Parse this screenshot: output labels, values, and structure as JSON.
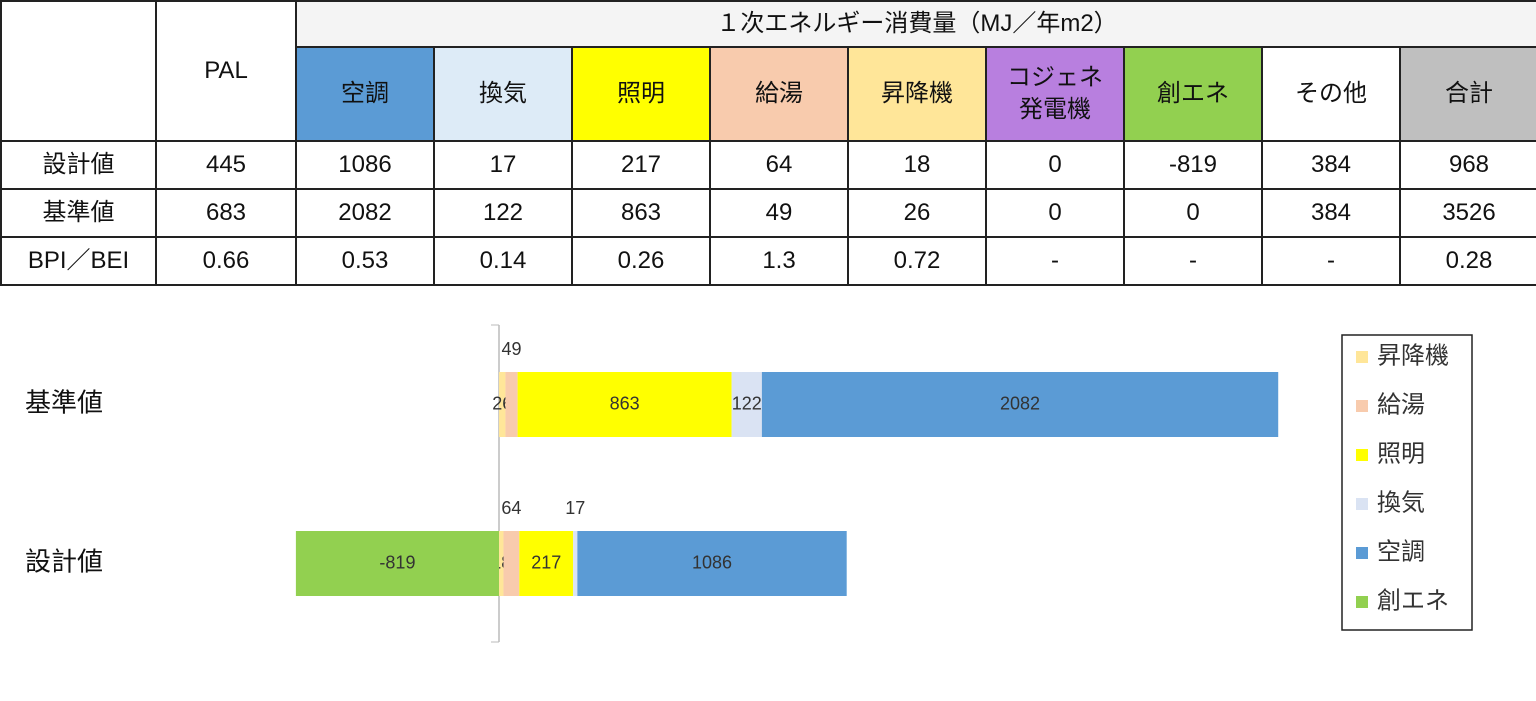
{
  "table": {
    "group_header": "１次エネルギー消費量（MJ／年m2）",
    "pal_header": "PAL",
    "columns": [
      {
        "label": "空調",
        "color": "#5b9bd5"
      },
      {
        "label": "換気",
        "color": "#ddebf7"
      },
      {
        "label": "照明",
        "color": "#ffff00"
      },
      {
        "label": "給湯",
        "color": "#f8cbad"
      },
      {
        "label": "昇降機",
        "color": "#ffe699"
      },
      {
        "label": "コジェネ\n発電機",
        "color": "#b87fdf"
      },
      {
        "label": "創エネ",
        "color": "#92d050"
      },
      {
        "label": "その他",
        "color": "#ffffff"
      },
      {
        "label": "合計",
        "color": "#bfbfbf"
      }
    ],
    "rows": [
      [
        "設計値",
        445,
        1086,
        17,
        217,
        64,
        18,
        0,
        -819,
        384,
        968
      ],
      [
        "基準値",
        683,
        2082,
        122,
        863,
        49,
        26,
        0,
        0,
        384,
        3526
      ],
      [
        "BPI／BEI",
        0.66,
        0.53,
        0.14,
        0.26,
        1.3,
        0.72,
        "-",
        "-",
        "-",
        0.28
      ]
    ]
  },
  "chart_data": {
    "type": "bar",
    "orientation": "horizontal",
    "stacked": true,
    "categories": [
      "基準値",
      "設計値"
    ],
    "series": [
      {
        "name": "昇降機",
        "color": "#ffe699",
        "values": [
          26,
          18
        ]
      },
      {
        "name": "給湯",
        "color": "#f8cbad",
        "values": [
          49,
          64
        ]
      },
      {
        "name": "照明",
        "color": "#ffff00",
        "values": [
          863,
          217
        ]
      },
      {
        "name": "換気",
        "color": "#dae3f3",
        "values": [
          122,
          17
        ]
      },
      {
        "name": "空調",
        "color": "#5b9bd5",
        "values": [
          2082,
          1086
        ]
      },
      {
        "name": "創エネ",
        "color": "#92d050",
        "values": [
          0,
          -819
        ]
      }
    ],
    "xlim": [
      -1000,
      3500
    ],
    "legend": "right"
  }
}
